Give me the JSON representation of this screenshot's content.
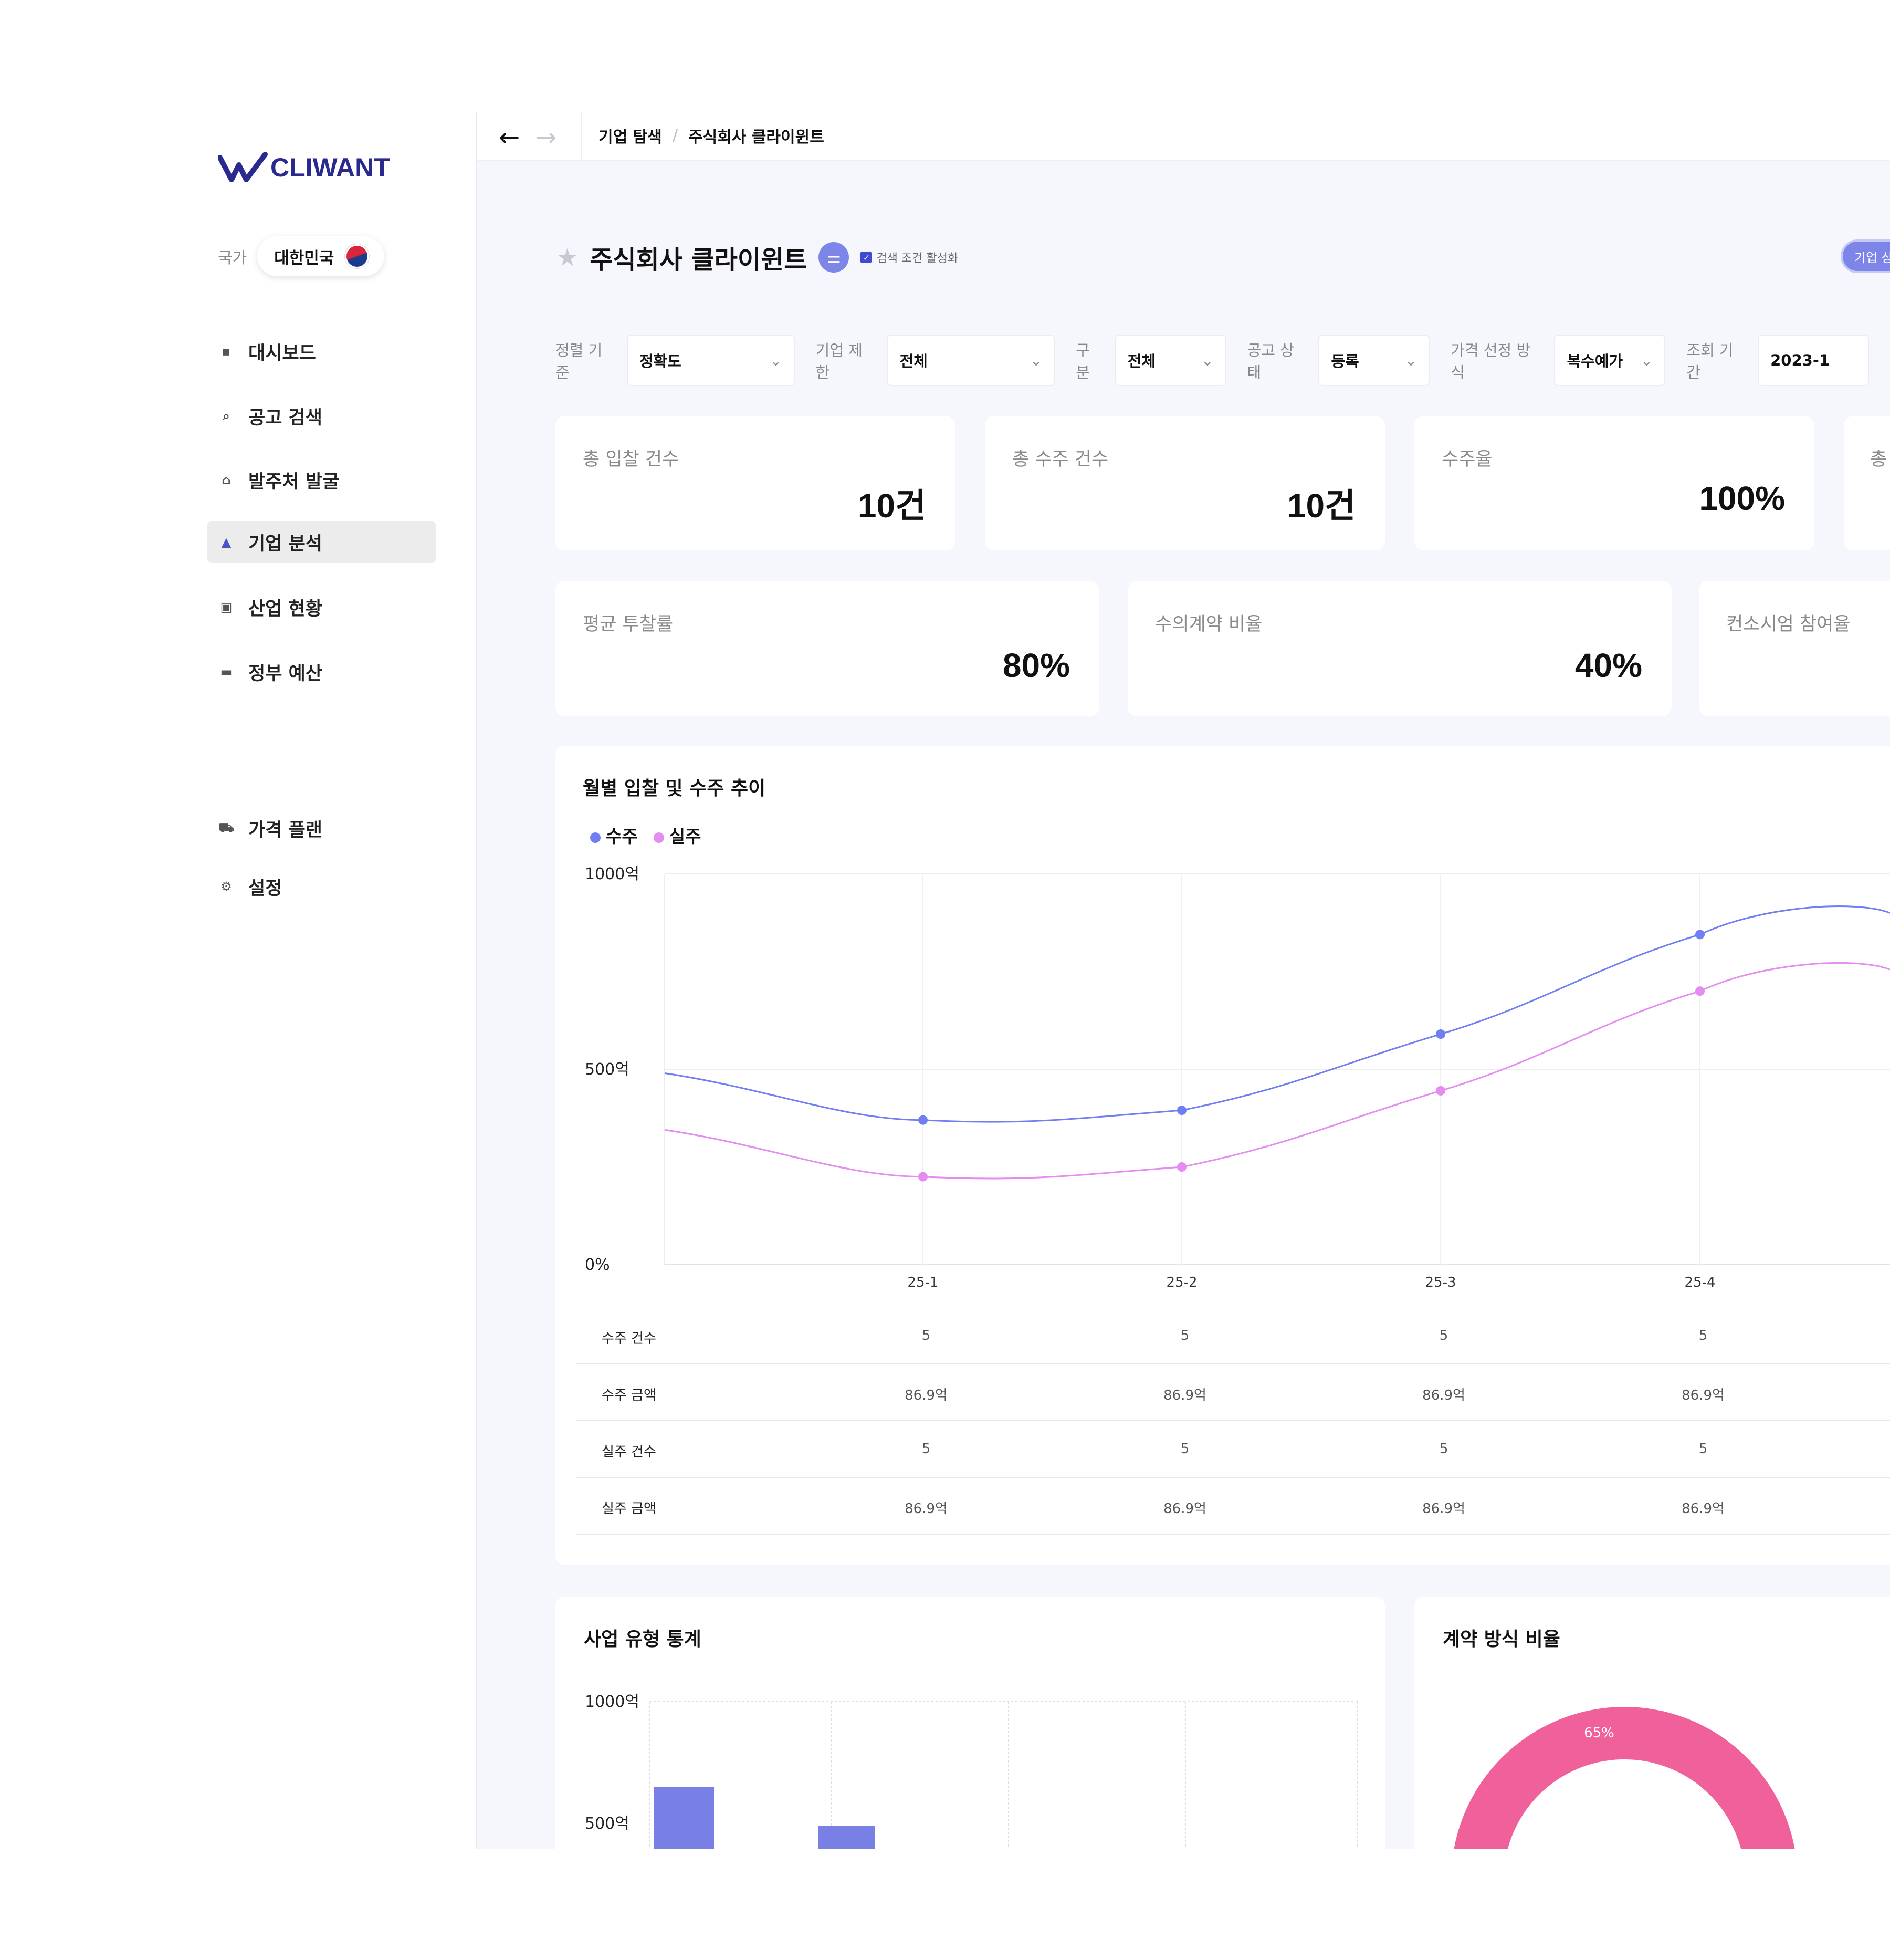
{
  "sidebar": {
    "logo_text": "CLIWANT",
    "country_label": "국가",
    "country_value": "대한민국",
    "nav": [
      {
        "label": "대시보드",
        "icon": "grid-icon"
      },
      {
        "label": "공고 검색",
        "icon": "search-icon"
      },
      {
        "label": "발주처 발굴",
        "icon": "building-icon"
      },
      {
        "label": "기업 분석",
        "icon": "analysis-icon",
        "active": true
      },
      {
        "label": "산업 현황",
        "icon": "chart-icon"
      },
      {
        "label": "정부 예산",
        "icon": "money-icon"
      }
    ],
    "bottom_nav": [
      {
        "label": "가격 플랜",
        "icon": "cart-icon"
      },
      {
        "label": "설정",
        "icon": "gear-icon"
      }
    ]
  },
  "topbar": {
    "breadcrumb": [
      "기업 탐색",
      "주식회사 클라이윈트"
    ]
  },
  "header": {
    "title": "주식회사 클라이윈트",
    "checkbox_label": "검색 조건 활성화",
    "corp_button": "기업 상"
  },
  "filters": [
    {
      "label": "정렬 기준",
      "value": "정확도"
    },
    {
      "label": "기업 제한",
      "value": "전체"
    },
    {
      "label": "구분",
      "value": "전체"
    },
    {
      "label": "공고 상태",
      "value": "등록"
    },
    {
      "label": "가격 선정 방식",
      "value": "복수예가"
    },
    {
      "label": "조회 기간",
      "value": "2023-1"
    }
  ],
  "stats_row1": [
    {
      "label": "총 입찰 건수",
      "value": "10건"
    },
    {
      "label": "총 수주 건수",
      "value": "10건"
    },
    {
      "label": "수주율",
      "value": "100%"
    },
    {
      "label": "총",
      "value": ""
    }
  ],
  "stats_row2": [
    {
      "label": "평균 투찰률",
      "value": "80%"
    },
    {
      "label": "수의계약 비율",
      "value": "40%"
    },
    {
      "label": "컨소시엄 참여율",
      "value": ""
    }
  ],
  "colors": {
    "accent": "#4b55c8",
    "series_win": "#6f7ef2",
    "series_loss": "#e58cf0",
    "donut_pink": "#f0609a",
    "donut_blue": "#6f7ef2",
    "bar": "#7880e6"
  },
  "chart_data": [
    {
      "type": "line",
      "title": "월별 입찰 및 수주 추이",
      "categories": [
        "25-1",
        "25-2",
        "25-3",
        "25-4"
      ],
      "y_ticks": [
        "1000억",
        "500억",
        "0%"
      ],
      "ylim": [
        0,
        1000
      ],
      "grid": true,
      "legend_placement": "top-left",
      "series": [
        {
          "name": "수주",
          "values": [
            370,
            395,
            590,
            845
          ]
        },
        {
          "name": "실주",
          "values": [
            225,
            250,
            445,
            700
          ]
        }
      ],
      "table": {
        "rows": [
          {
            "label": "수주 건수",
            "values": [
              "5",
              "5",
              "5",
              "5"
            ]
          },
          {
            "label": "수주 금액",
            "values": [
              "86.9억",
              "86.9억",
              "86.9억",
              "86.9억"
            ]
          },
          {
            "label": "실주 건수",
            "values": [
              "5",
              "5",
              "5",
              "5"
            ]
          },
          {
            "label": "실주 금액",
            "values": [
              "86.9억",
              "86.9억",
              "86.9억",
              "86.9억"
            ]
          }
        ]
      }
    },
    {
      "type": "bar",
      "title": "사업 유형 통계",
      "y_ticks": [
        "1000억",
        "500억"
      ],
      "ylim": [
        0,
        1000
      ],
      "values": [
        650,
        490
      ]
    },
    {
      "type": "pie",
      "title": "계약 방식 비율",
      "slices": [
        {
          "label": "65%",
          "value": 65
        },
        {
          "label": "",
          "value": 35
        }
      ]
    }
  ]
}
